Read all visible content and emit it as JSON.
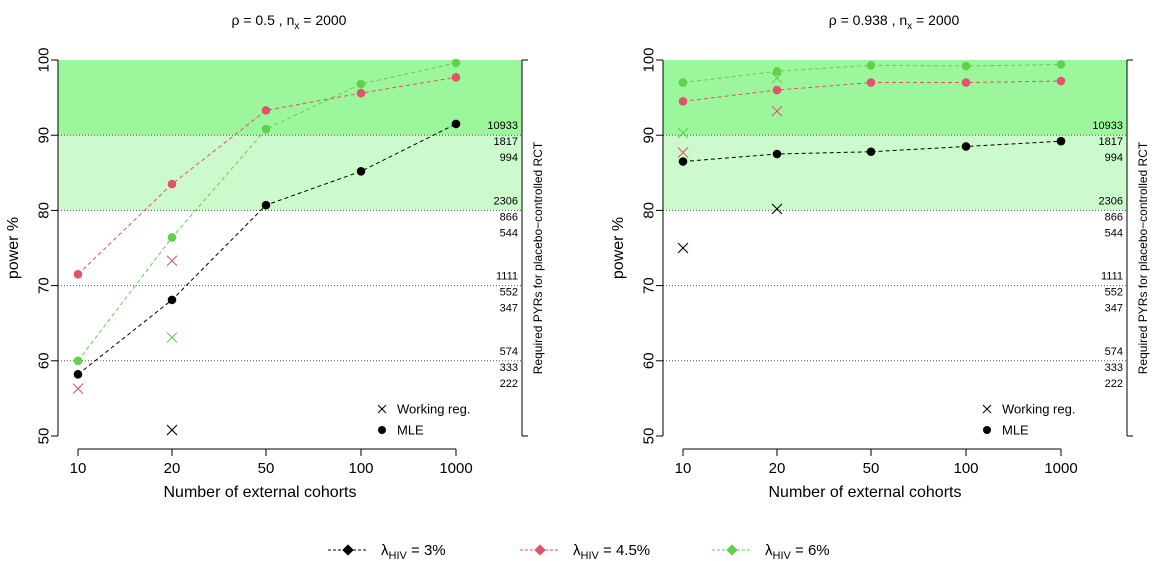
{
  "chart_data": [
    {
      "type": "line",
      "title_main": "ρ = 0.5 , n",
      "title_sub": "x",
      "title_rest": " = 2000",
      "xlabel": "Number of external cohorts",
      "ylabel": "power %",
      "right_label": "Required PYRs for placebo−controlled RCT",
      "categories": [
        "10",
        "20",
        "50",
        "100",
        "1000"
      ],
      "y_ticks": [
        "50",
        "60",
        "70",
        "80",
        "90",
        "100"
      ],
      "ylim": [
        50,
        100
      ],
      "shading": {
        "strong_from": 90,
        "light_from": 80,
        "strong_color": "#9cf79c",
        "light_color": "#ccfacc"
      },
      "series": [
        {
          "color": "#000000",
          "mle": [
            58.2,
            68.1,
            80.7,
            85.2,
            91.5
          ],
          "working_reg": [
            null,
            50.8,
            null,
            null,
            null
          ]
        },
        {
          "color": "#df536b",
          "mle": [
            71.5,
            83.5,
            93.3,
            95.6,
            97.7
          ],
          "working_reg": [
            56.3,
            73.3,
            null,
            null,
            null
          ]
        },
        {
          "color": "#61d04f",
          "mle": [
            60.0,
            76.4,
            90.8,
            96.8,
            99.6
          ],
          "working_reg": [
            null,
            63.1,
            null,
            null,
            null
          ]
        }
      ],
      "gridlines": [
        60,
        70,
        80,
        90
      ],
      "right_labels": [
        {
          "y": 90,
          "values": [
            "10933",
            "1817",
            "994"
          ]
        },
        {
          "y": 80,
          "values": [
            "2306",
            "866",
            "544"
          ]
        },
        {
          "y": 70,
          "values": [
            "1111",
            "552",
            "347"
          ]
        },
        {
          "y": 60,
          "values": [
            "574",
            "333",
            "222"
          ]
        }
      ],
      "legend": [
        {
          "marker": "cross",
          "label": "Working reg."
        },
        {
          "marker": "dot",
          "label": "MLE"
        }
      ]
    },
    {
      "type": "line",
      "title_main": "ρ = 0.938 , n",
      "title_sub": "x",
      "title_rest": " = 2000",
      "xlabel": "Number of external cohorts",
      "ylabel": "power %",
      "right_label": "Required PYRs for placebo−controlled RCT",
      "categories": [
        "10",
        "20",
        "50",
        "100",
        "1000"
      ],
      "y_ticks": [
        "50",
        "60",
        "70",
        "80",
        "90",
        "100"
      ],
      "ylim": [
        50,
        100
      ],
      "shading": {
        "strong_from": 90,
        "light_from": 80,
        "strong_color": "#9cf79c",
        "light_color": "#ccfacc"
      },
      "series": [
        {
          "color": "#000000",
          "mle": [
            86.5,
            87.5,
            87.8,
            88.5,
            89.2
          ],
          "working_reg": [
            75.0,
            80.2,
            null,
            null,
            null
          ]
        },
        {
          "color": "#df536b",
          "mle": [
            94.5,
            96.0,
            97.0,
            97.0,
            97.2
          ],
          "working_reg": [
            87.7,
            93.2,
            null,
            null,
            null
          ]
        },
        {
          "color": "#61d04f",
          "mle": [
            97.0,
            98.5,
            99.3,
            99.2,
            99.4
          ],
          "working_reg": [
            90.3,
            97.6,
            null,
            null,
            null
          ]
        }
      ],
      "gridlines": [
        60,
        70,
        80,
        90
      ],
      "right_labels": [
        {
          "y": 90,
          "values": [
            "10933",
            "1817",
            "994"
          ]
        },
        {
          "y": 80,
          "values": [
            "2306",
            "866",
            "544"
          ]
        },
        {
          "y": 70,
          "values": [
            "1111",
            "552",
            "347"
          ]
        },
        {
          "y": 60,
          "values": [
            "574",
            "333",
            "222"
          ]
        }
      ],
      "legend": [
        {
          "marker": "cross",
          "label": "Working reg."
        },
        {
          "marker": "dot",
          "label": "MLE"
        }
      ]
    }
  ],
  "bottom_legend": [
    {
      "color": "#000000",
      "prefix": "λ",
      "sub": "HIV",
      "value": " = 3%"
    },
    {
      "color": "#df536b",
      "prefix": "λ",
      "sub": "HIV",
      "value": " = 4.5%"
    },
    {
      "color": "#61d04f",
      "prefix": "λ",
      "sub": "HIV",
      "value": " = 6%"
    }
  ]
}
